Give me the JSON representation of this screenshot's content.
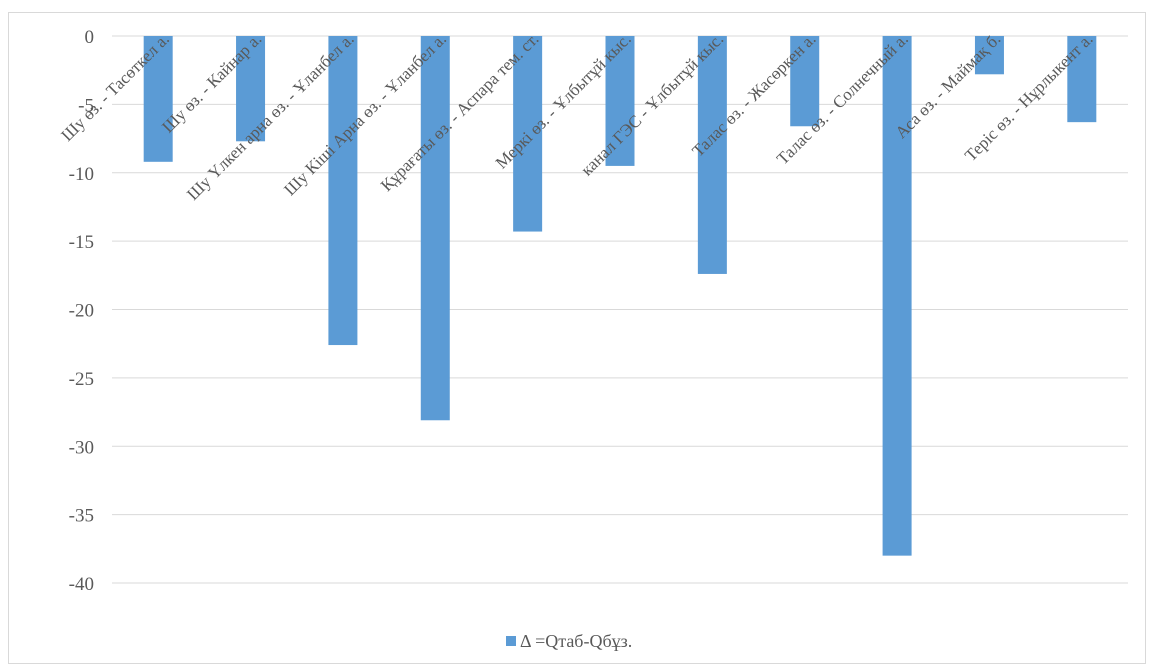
{
  "chart_data": {
    "type": "bar",
    "title": "",
    "xlabel": "",
    "ylabel": "",
    "ylim": [
      -40,
      0
    ],
    "yticks": [
      0,
      -5,
      -10,
      -15,
      -20,
      -25,
      -30,
      -35,
      -40
    ],
    "grid": true,
    "legend_position": "bottom",
    "bar_color": "#5b9bd5",
    "categories": [
      "Шу өз. - Тасөткел а.",
      "Шу өз. - Кайнар а.",
      "Шу Үлкен арна өз. - Ұланбел а.",
      "Шу Кіші Арна өз. - Ұланбел а.",
      "Құрағаты өз. - Аспара тем. ст.",
      "Меркі өз. - Ұлбытұй кыс.",
      "канал ГЭС - Ұлбытұй кыс.",
      "Талас өз. - Жасөркен а.",
      "Талас өз. - Солнечный а.",
      "Аса өз. - Маймақ б.",
      "Теріс өз. - Нұрлыкент а."
    ],
    "series": [
      {
        "name": "Δ =Qтаб-Qбұз.",
        "values": [
          -9.2,
          -7.7,
          -22.6,
          -28.1,
          -14.3,
          -9.5,
          -17.4,
          -6.6,
          -38.0,
          -2.8,
          -6.3
        ]
      }
    ]
  }
}
